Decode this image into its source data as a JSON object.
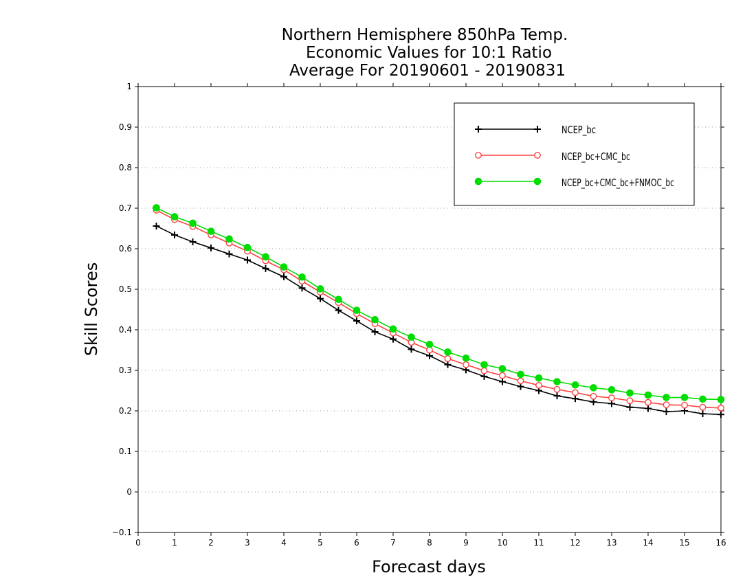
{
  "chart_data": {
    "type": "line",
    "title_lines": [
      "Northern Hemisphere 850hPa Temp.",
      "Economic Values for 10:1 Ratio",
      "Average For 20190601 - 20190831"
    ],
    "xlabel": "Forecast days",
    "ylabel": "Skill Scores",
    "xlim": [
      0,
      16
    ],
    "ylim": [
      -0.1,
      1
    ],
    "x_ticks": [
      "0",
      "1",
      "2",
      "3",
      "4",
      "5",
      "6",
      "7",
      "8",
      "9",
      "10",
      "11",
      "12",
      "13",
      "14",
      "15",
      "16"
    ],
    "y_ticks": [
      "−0.1",
      "0",
      "0.1",
      "0.2",
      "0.3",
      "0.4",
      "0.5",
      "0.6",
      "0.7",
      "0.8",
      "0.9",
      "1"
    ],
    "grid": "horizontal-dotted",
    "legend_position": "top-right",
    "x": [
      0.5,
      1,
      1.5,
      2,
      2.5,
      3,
      3.5,
      4,
      4.5,
      5,
      5.5,
      6,
      6.5,
      7,
      7.5,
      8,
      8.5,
      9,
      9.5,
      10,
      10.5,
      11,
      11.5,
      12,
      12.5,
      13,
      13.5,
      14,
      14.5,
      15,
      15.5,
      16
    ],
    "series": [
      {
        "name": "NCEP_bc",
        "color": "#000000",
        "marker": "plus",
        "values": [
          0.656,
          0.634,
          0.617,
          0.602,
          0.587,
          0.572,
          0.551,
          0.531,
          0.503,
          0.477,
          0.448,
          0.422,
          0.395,
          0.377,
          0.352,
          0.336,
          0.314,
          0.301,
          0.285,
          0.272,
          0.26,
          0.25,
          0.237,
          0.23,
          0.222,
          0.218,
          0.209,
          0.206,
          0.198,
          0.2,
          0.193,
          0.191
        ]
      },
      {
        "name": "NCEP_bc+CMC_bc",
        "color": "#ff4040",
        "marker": "open-circle",
        "values": [
          0.695,
          0.672,
          0.655,
          0.634,
          0.614,
          0.594,
          0.57,
          0.548,
          0.52,
          0.493,
          0.467,
          0.44,
          0.415,
          0.392,
          0.369,
          0.35,
          0.329,
          0.314,
          0.299,
          0.287,
          0.274,
          0.263,
          0.253,
          0.245,
          0.236,
          0.232,
          0.225,
          0.221,
          0.215,
          0.214,
          0.209,
          0.207
        ]
      },
      {
        "name": "NCEP_bc+CMC_bc+FNMOC_bc",
        "color": "#00dd00",
        "marker": "filled-circle",
        "values": [
          0.701,
          0.679,
          0.663,
          0.643,
          0.624,
          0.603,
          0.58,
          0.555,
          0.53,
          0.501,
          0.475,
          0.448,
          0.425,
          0.402,
          0.382,
          0.364,
          0.345,
          0.33,
          0.314,
          0.304,
          0.29,
          0.281,
          0.272,
          0.264,
          0.257,
          0.252,
          0.244,
          0.239,
          0.233,
          0.233,
          0.229,
          0.228
        ]
      }
    ]
  }
}
